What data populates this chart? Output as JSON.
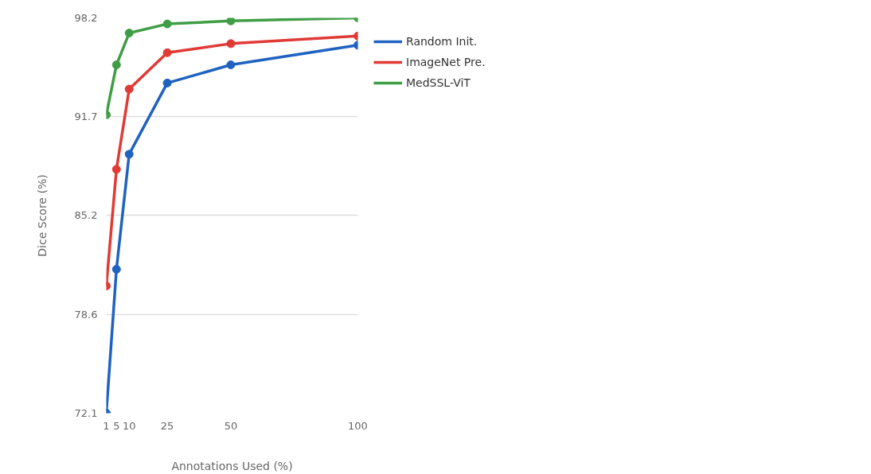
{
  "chart_data": {
    "type": "line",
    "xlabel": "Annotations Used (%)",
    "ylabel": "Dice Score (%)",
    "x": [
      1,
      5,
      10,
      25,
      50,
      100
    ],
    "series": [
      {
        "name": "Random Init.",
        "color": "#1f62c0",
        "values": [
          72.1,
          81.6,
          89.2,
          93.9,
          95.1,
          96.4
        ]
      },
      {
        "name": "ImageNet Pre.",
        "color": "#e03a35",
        "values": [
          80.5,
          88.2,
          93.5,
          95.9,
          96.5,
          97.0
        ]
      },
      {
        "name": "MedSSL-ViT",
        "color": "#3f9e45",
        "values": [
          91.8,
          95.1,
          97.2,
          97.8,
          98.0,
          98.2
        ]
      }
    ],
    "xlim": [
      1,
      100
    ],
    "xticks": [
      1,
      5,
      10,
      25,
      50,
      100
    ],
    "ylim": [
      72.1,
      98.2
    ],
    "yticks": [
      72.1,
      78.6,
      85.2,
      91.7,
      98.2
    ],
    "grid": "y",
    "legend": "right",
    "marker": "circle",
    "line_style": "solid"
  }
}
